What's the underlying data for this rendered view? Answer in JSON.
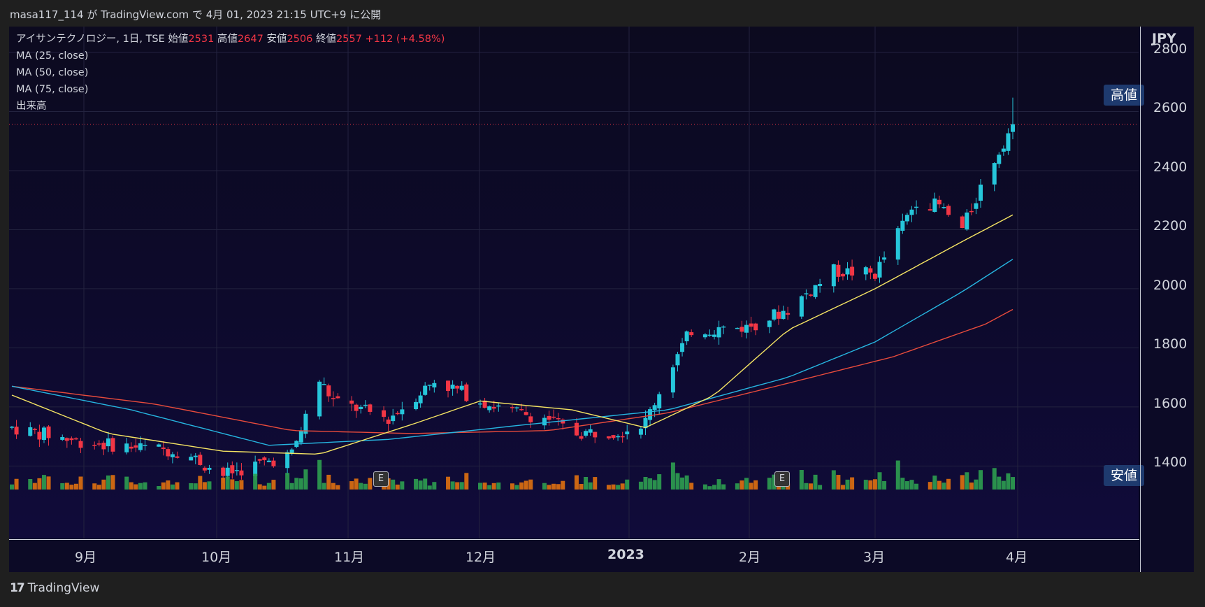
{
  "header": {
    "publish_line": "masa117_114 が TradingView.com で 4月 01, 2023 21:15 UTC+9 に公開"
  },
  "legend": {
    "symbol": "アイサンテクノロジー, 1日, TSE",
    "open_label": "始値",
    "open": "2531",
    "high_label": "高値",
    "high": "2647",
    "low_label": "安値",
    "low": "2506",
    "close_label": "終値",
    "close": "2557",
    "change": "+112 (+4.58%)",
    "ma25": "MA (25, close)",
    "ma50": "MA (50, close)",
    "ma75": "MA (75, close)",
    "volume": "出来高"
  },
  "price_axis": {
    "currency": "JPY",
    "ticks": [
      "2800",
      "2600",
      "2400",
      "2200",
      "2000",
      "1800",
      "1600",
      "1400"
    ]
  },
  "time_axis": {
    "labels": [
      "9月",
      "10月",
      "11月",
      "12月",
      "2023",
      "2月",
      "3月",
      "4月"
    ]
  },
  "badges": {
    "high": "高値",
    "low": "安値"
  },
  "earnings_marker": "E",
  "footer": {
    "brand": "TradingView",
    "logo_icon": "tradingview-logo-icon"
  },
  "colors": {
    "up": "#26c6da",
    "down": "#f23645",
    "ma25": "#f5e463",
    "ma50": "#26b5e0",
    "ma75": "#e84b3c",
    "vol_up": "#2e9e50",
    "vol_down": "#e07010",
    "background": "#0c0a26"
  },
  "chart_data": {
    "type": "candlestick",
    "title": "アイサンテクノロジー, 1日, TSE",
    "ylabel": "JPY",
    "ylim": [
      1300,
      2800
    ],
    "x_range": [
      "2022-08-25",
      "2023-03-31"
    ],
    "last": {
      "open": 2531,
      "high": 2647,
      "low": 2506,
      "close": 2557
    },
    "close_path_anchors": [
      [
        "2022-08-25",
        1530
      ],
      [
        "2022-09-10",
        1480
      ],
      [
        "2022-10-01",
        1450
      ],
      [
        "2022-10-10",
        1370
      ],
      [
        "2022-10-25",
        1440
      ],
      [
        "2022-10-31",
        1690
      ],
      [
        "2022-11-03",
        1620
      ],
      [
        "2022-11-15",
        1560
      ],
      [
        "2022-11-25",
        1690
      ],
      [
        "2022-12-10",
        1590
      ],
      [
        "2022-12-20",
        1560
      ],
      [
        "2022-12-25",
        1510
      ],
      [
        "2023-01-05",
        1520
      ],
      [
        "2023-01-10",
        1550
      ],
      [
        "2023-01-15",
        1720
      ],
      [
        "2023-01-20",
        1860
      ],
      [
        "2023-02-01",
        1870
      ],
      [
        "2023-02-10",
        1930
      ],
      [
        "2023-02-20",
        2060
      ],
      [
        "2023-03-01",
        2050
      ],
      [
        "2023-03-10",
        2300
      ],
      [
        "2023-03-15",
        2280
      ],
      [
        "2023-03-20",
        2200
      ],
      [
        "2023-03-25",
        2380
      ],
      [
        "2023-03-31",
        2557
      ]
    ],
    "ma25_anchors": [
      [
        "2022-08-25",
        1640
      ],
      [
        "2022-09-15",
        1510
      ],
      [
        "2022-10-10",
        1450
      ],
      [
        "2022-10-31",
        1440
      ],
      [
        "2022-11-20",
        1540
      ],
      [
        "2022-12-05",
        1620
      ],
      [
        "2022-12-25",
        1590
      ],
      [
        "2023-01-10",
        1530
      ],
      [
        "2023-01-25",
        1640
      ],
      [
        "2023-02-10",
        1860
      ],
      [
        "2023-03-01",
        2000
      ],
      [
        "2023-03-20",
        2160
      ],
      [
        "2023-03-31",
        2250
      ]
    ],
    "ma50_anchors": [
      [
        "2022-08-25",
        1670
      ],
      [
        "2022-09-20",
        1590
      ],
      [
        "2022-10-20",
        1470
      ],
      [
        "2022-11-15",
        1490
      ],
      [
        "2022-12-15",
        1540
      ],
      [
        "2023-01-15",
        1590
      ],
      [
        "2023-02-10",
        1700
      ],
      [
        "2023-03-01",
        1820
      ],
      [
        "2023-03-20",
        1990
      ],
      [
        "2023-03-31",
        2100
      ]
    ],
    "ma75_anchors": [
      [
        "2022-08-25",
        1670
      ],
      [
        "2022-09-25",
        1610
      ],
      [
        "2022-10-25",
        1520
      ],
      [
        "2022-11-20",
        1510
      ],
      [
        "2022-12-20",
        1520
      ],
      [
        "2023-01-15",
        1580
      ],
      [
        "2023-02-10",
        1680
      ],
      [
        "2023-03-05",
        1770
      ],
      [
        "2023-03-25",
        1880
      ],
      [
        "2023-03-31",
        1930
      ]
    ]
  }
}
